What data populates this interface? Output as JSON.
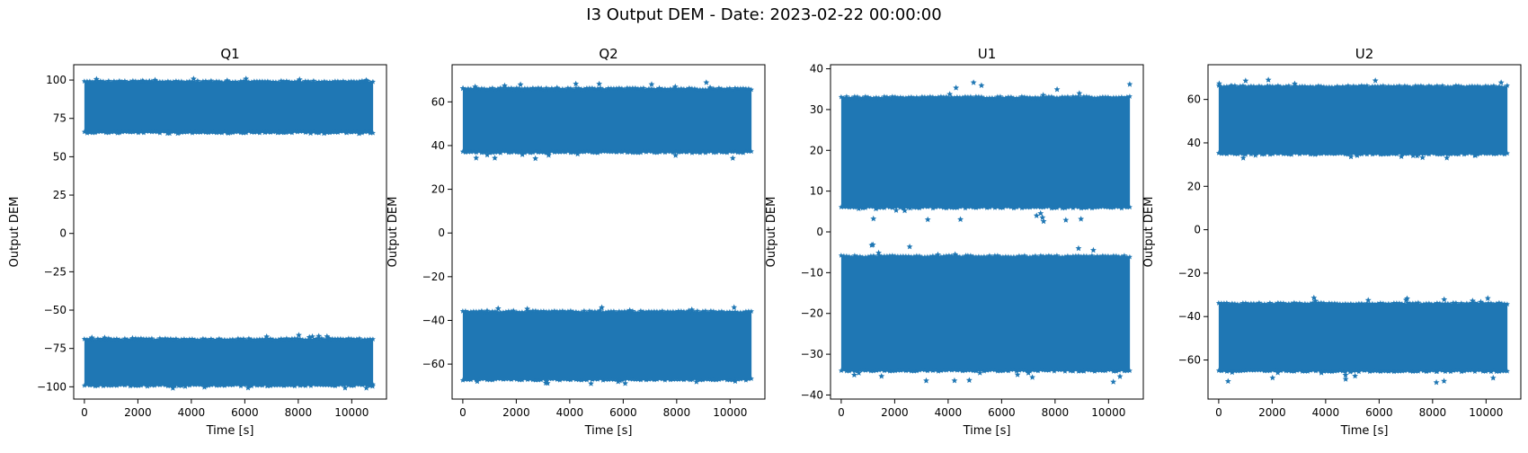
{
  "figure_title": "I3 Output DEM - Date: 2023-02-22 00:00:00",
  "colors": {
    "series": "#1f77b4",
    "axes": "#000000"
  },
  "chart_data": [
    {
      "type": "scatter",
      "title": "Q1",
      "xlabel": "Time [s]",
      "ylabel": "Output DEM",
      "marker": "star",
      "xlim": [
        -400,
        11300
      ],
      "ylim": [
        -108,
        110
      ],
      "xticks": [
        0,
        2000,
        4000,
        6000,
        8000,
        10000
      ],
      "yticks": [
        -100,
        -75,
        -50,
        -25,
        0,
        25,
        50,
        75,
        100
      ],
      "x_range": [
        0,
        10800
      ],
      "bands": [
        {
          "lower": 66,
          "upper": 99,
          "min": 65,
          "max": 101
        },
        {
          "lower": -99,
          "upper": -69,
          "min": -101,
          "max": -66
        }
      ]
    },
    {
      "type": "scatter",
      "title": "Q2",
      "xlabel": "Time [s]",
      "ylabel": "Output DEM",
      "marker": "star",
      "xlim": [
        -400,
        11300
      ],
      "ylim": [
        -76,
        77
      ],
      "xticks": [
        0,
        2000,
        4000,
        6000,
        8000,
        10000
      ],
      "yticks": [
        -60,
        -40,
        -20,
        0,
        20,
        40,
        60
      ],
      "x_range": [
        0,
        10800
      ],
      "bands": [
        {
          "lower": 37,
          "upper": 66,
          "min": 34,
          "max": 69
        },
        {
          "lower": -67,
          "upper": -36,
          "min": -69,
          "max": -34
        }
      ]
    },
    {
      "type": "scatter",
      "title": "U1",
      "xlabel": "Time [s]",
      "ylabel": "Output DEM",
      "marker": "star",
      "xlim": [
        -400,
        11300
      ],
      "ylim": [
        -41,
        41
      ],
      "xticks": [
        0,
        2000,
        4000,
        6000,
        8000,
        10000
      ],
      "yticks": [
        -40,
        -30,
        -20,
        -10,
        0,
        10,
        20,
        30,
        40
      ],
      "x_range": [
        0,
        10800
      ],
      "bands": [
        {
          "lower": 6,
          "upper": 33,
          "min": 2,
          "max": 37
        },
        {
          "lower": -34,
          "upper": -6,
          "min": -37,
          "max": -3
        }
      ]
    },
    {
      "type": "scatter",
      "title": "U2",
      "xlabel": "Time [s]",
      "ylabel": "Output DEM",
      "marker": "star",
      "xlim": [
        -400,
        11300
      ],
      "ylim": [
        -78,
        76
      ],
      "xticks": [
        0,
        2000,
        4000,
        6000,
        8000,
        10000
      ],
      "yticks": [
        -60,
        -40,
        -20,
        0,
        20,
        40,
        60
      ],
      "x_range": [
        0,
        10800
      ],
      "bands": [
        {
          "lower": 35,
          "upper": 66,
          "min": 33,
          "max": 69
        },
        {
          "lower": -65,
          "upper": -34,
          "min": -71,
          "max": -31
        }
      ]
    }
  ]
}
